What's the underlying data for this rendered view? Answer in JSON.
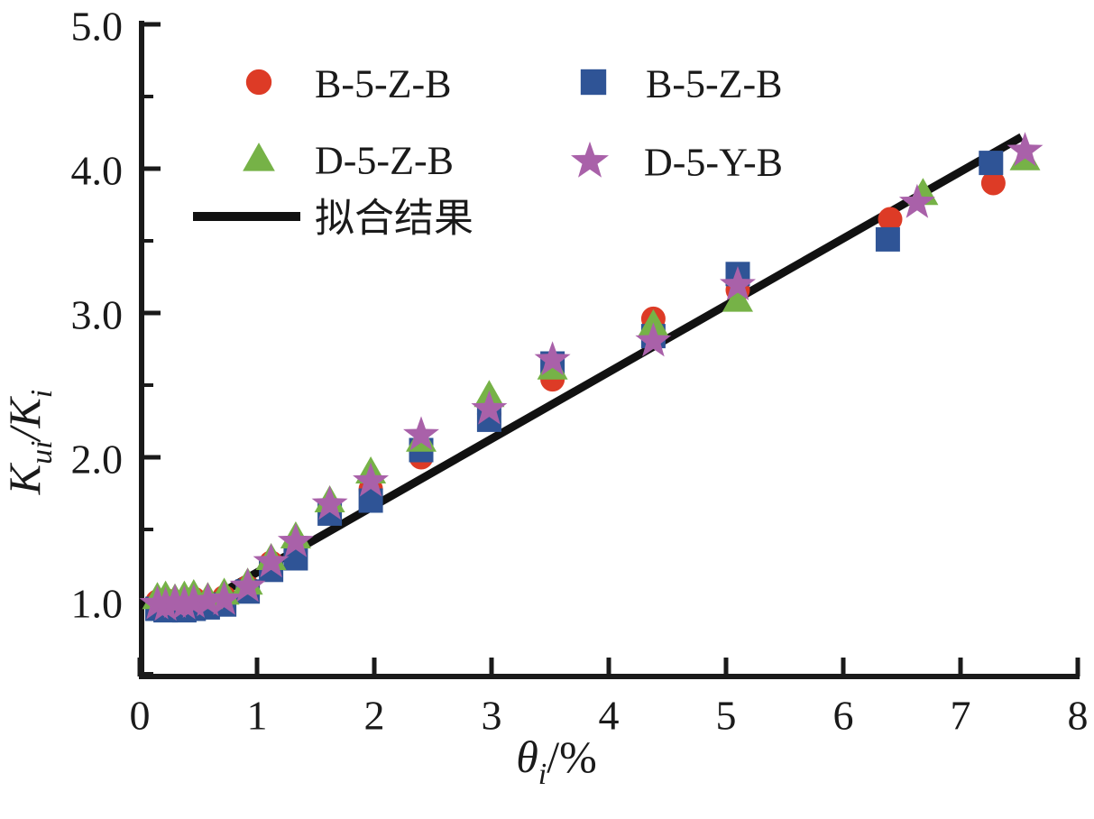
{
  "chart_data": {
    "type": "scatter",
    "title": "",
    "xlabel": {
      "plain": "θi/%",
      "parts": [
        {
          "t": "θ",
          "k": "it"
        },
        {
          "t": "i",
          "k": "sub"
        },
        {
          "t": "/%",
          "k": "up"
        }
      ]
    },
    "ylabel": {
      "plain": "Kui/Ki",
      "parts": [
        {
          "t": "K",
          "k": "it"
        },
        {
          "t": "ui",
          "k": "sub"
        },
        {
          "t": "/",
          "k": "it"
        },
        {
          "t": "K",
          "k": "it"
        },
        {
          "t": "i",
          "k": "sub"
        }
      ]
    },
    "xlim": [
      0,
      8
    ],
    "ylim": [
      0.5,
      5.0
    ],
    "x_ticks": {
      "values": [
        0,
        1,
        2,
        3,
        4,
        5,
        6,
        7,
        8
      ],
      "labels": [
        "0",
        "1",
        "2",
        "3",
        "4",
        "5",
        "6",
        "7",
        "8"
      ]
    },
    "y_ticks": {
      "values": [
        1.0,
        2.0,
        3.0,
        4.0,
        5.0
      ],
      "labels": [
        "1.0",
        "2.0",
        "3.0",
        "4.0",
        "5.0"
      ]
    },
    "y_minor_ticks": [
      0.5,
      1.5,
      2.5,
      3.5,
      4.5
    ],
    "grid": false,
    "legend_position": "upper-left-inside",
    "axis_color": "#1a1a1a",
    "series": [
      {
        "name": "B-5-Z-B",
        "marker": "circle",
        "color": "#dd3b26",
        "points": [
          [
            0.15,
            1.0
          ],
          [
            0.22,
            1.01
          ],
          [
            0.3,
            0.99
          ],
          [
            0.38,
            1.0
          ],
          [
            0.46,
            1.02
          ],
          [
            0.58,
            0.99
          ],
          [
            0.72,
            1.03
          ],
          [
            0.92,
            1.1
          ],
          [
            1.12,
            1.27
          ],
          [
            1.33,
            1.35
          ],
          [
            1.62,
            1.64
          ],
          [
            1.97,
            1.78
          ],
          [
            2.4,
            2.0
          ],
          [
            2.98,
            2.3
          ],
          [
            3.52,
            2.54
          ],
          [
            4.38,
            2.96
          ],
          [
            5.1,
            3.16
          ],
          [
            6.4,
            3.65
          ],
          [
            7.28,
            3.9
          ]
        ]
      },
      {
        "name": "B-5-Z-B",
        "marker": "square",
        "color": "#2f5496",
        "points": [
          [
            0.15,
            0.95
          ],
          [
            0.22,
            0.94
          ],
          [
            0.3,
            0.96
          ],
          [
            0.38,
            0.94
          ],
          [
            0.46,
            0.95
          ],
          [
            0.58,
            0.96
          ],
          [
            0.72,
            0.98
          ],
          [
            0.92,
            1.07
          ],
          [
            1.12,
            1.22
          ],
          [
            1.33,
            1.3
          ],
          [
            1.62,
            1.61
          ],
          [
            1.97,
            1.7
          ],
          [
            2.4,
            2.05
          ],
          [
            2.98,
            2.26
          ],
          [
            3.52,
            2.65
          ],
          [
            4.38,
            2.84
          ],
          [
            5.1,
            3.27
          ],
          [
            6.38,
            3.51
          ],
          [
            7.26,
            4.04
          ]
        ]
      },
      {
        "name": "D-5-Z-B",
        "marker": "triangle",
        "color": "#76b247",
        "points": [
          [
            0.15,
            1.03
          ],
          [
            0.22,
            1.04
          ],
          [
            0.3,
            1.02
          ],
          [
            0.38,
            1.04
          ],
          [
            0.46,
            1.05
          ],
          [
            0.58,
            1.03
          ],
          [
            0.72,
            1.06
          ],
          [
            0.92,
            1.13
          ],
          [
            1.12,
            1.3
          ],
          [
            1.33,
            1.45
          ],
          [
            1.62,
            1.7
          ],
          [
            1.97,
            1.9
          ],
          [
            2.4,
            2.12
          ],
          [
            2.98,
            2.43
          ],
          [
            3.52,
            2.62
          ],
          [
            4.38,
            2.92
          ],
          [
            5.1,
            3.09
          ],
          [
            6.68,
            3.83
          ],
          [
            7.55,
            4.07
          ]
        ]
      },
      {
        "name": "D-5-Y-B",
        "marker": "star",
        "color": "#a961a9",
        "points": [
          [
            0.15,
            0.99
          ],
          [
            0.22,
            0.98
          ],
          [
            0.3,
            1.0
          ],
          [
            0.38,
            0.99
          ],
          [
            0.46,
            1.0
          ],
          [
            0.58,
            1.01
          ],
          [
            0.72,
            1.02
          ],
          [
            0.92,
            1.11
          ],
          [
            1.12,
            1.28
          ],
          [
            1.33,
            1.42
          ],
          [
            1.62,
            1.68
          ],
          [
            1.97,
            1.84
          ],
          [
            2.4,
            2.16
          ],
          [
            2.98,
            2.34
          ],
          [
            3.52,
            2.68
          ],
          [
            4.38,
            2.81
          ],
          [
            5.1,
            3.2
          ],
          [
            6.63,
            3.77
          ],
          [
            7.55,
            4.13
          ]
        ]
      }
    ],
    "fit_line": {
      "label": "拟合结果",
      "color": "#111111",
      "points": [
        [
          0.0,
          0.98
        ],
        [
          0.52,
          0.98
        ],
        [
          7.52,
          4.22
        ]
      ]
    }
  }
}
